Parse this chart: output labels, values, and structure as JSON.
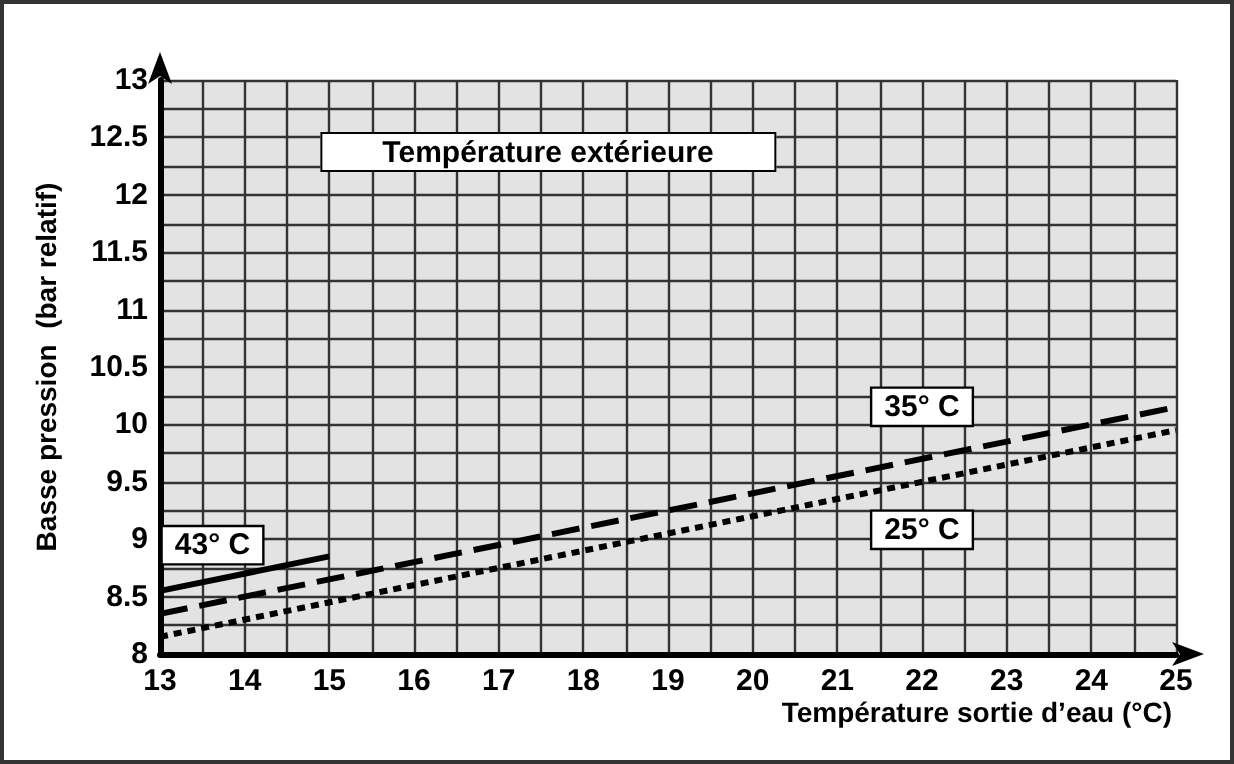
{
  "chart_data": {
    "type": "line",
    "xlabel": "Température sortie d’eau (°C)",
    "ylabel": "Basse pression  (bar relatif)",
    "annotations": [
      "Température extérieure"
    ],
    "xlim": [
      13,
      25
    ],
    "xticks": [
      13,
      {
        "value": 13.5,
        "label": null
      },
      14,
      {
        "value": 14.5,
        "label": null
      },
      15,
      {
        "value": 15.5,
        "label": null
      },
      16,
      {
        "value": 16.5,
        "label": null
      },
      17,
      {
        "value": 17.5,
        "label": null
      },
      18,
      {
        "value": 18.5,
        "label": null
      },
      19,
      {
        "value": 19.5,
        "label": null
      },
      20,
      {
        "value": 20.5,
        "label": null
      },
      21,
      {
        "value": 21.5,
        "label": null
      },
      22,
      {
        "value": 22.5,
        "label": null
      },
      23,
      {
        "value": 23.5,
        "label": null
      },
      24,
      {
        "value": 24.5,
        "label": null
      },
      25
    ],
    "ylim": [
      8,
      13
    ],
    "yticks": [
      8,
      {
        "value": 8.25,
        "label": null
      },
      8.5,
      {
        "value": 8.75,
        "label": null
      },
      9,
      {
        "value": 9.25,
        "label": null
      },
      9.5,
      {
        "value": 9.75,
        "label": null
      },
      10,
      {
        "value": 10.25,
        "label": null
      },
      10.5,
      {
        "value": 10.75,
        "label": null
      },
      11,
      {
        "value": 11.25,
        "label": null
      },
      11.5,
      {
        "value": 11.75,
        "label": null
      },
      12,
      {
        "value": 12.25,
        "label": null
      },
      12.5,
      {
        "value": 12.75,
        "label": null
      },
      13
    ],
    "grid": true,
    "marker": "none",
    "series": [
      {
        "name": "43° C",
        "color": "#000000",
        "line_style": "solid",
        "x": [
          13,
          15
        ],
        "values": [
          8.55,
          8.85
        ]
      },
      {
        "name": "35° C",
        "color": "#000000",
        "line_style": "dashed",
        "x": [
          13,
          25
        ],
        "values": [
          8.35,
          10.15
        ]
      },
      {
        "name": "25° C",
        "color": "#000000",
        "line_style": "dotted",
        "x": [
          13,
          25
        ],
        "values": [
          8.15,
          9.95
        ]
      }
    ]
  }
}
